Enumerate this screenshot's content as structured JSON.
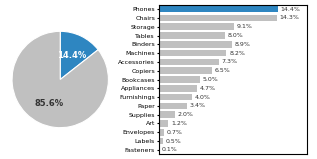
{
  "chart_data": [
    {
      "type": "pie",
      "values": [
        14.4,
        85.6
      ],
      "value_labels": [
        "14.4%",
        "85.6%"
      ],
      "colors": [
        "#2E86C1",
        "#C0C0C0"
      ],
      "data_labels": true
    },
    {
      "type": "bar",
      "orientation": "horizontal",
      "categories": [
        "Phones",
        "Chairs",
        "Storage",
        "Tables",
        "Binders",
        "Machines",
        "Accessories",
        "Copiers",
        "Bookcases",
        "Appliances",
        "Furnishings",
        "Paper",
        "Supplies",
        "Art",
        "Envelopes",
        "Labels",
        "Fasteners"
      ],
      "values": [
        14.4,
        14.3,
        9.1,
        8.0,
        8.9,
        8.2,
        7.3,
        6.5,
        5.0,
        4.7,
        4.0,
        3.4,
        2.0,
        1.2,
        0.7,
        0.5,
        0.1
      ],
      "value_labels": [
        "14.4%",
        "14.3%",
        "9.1%",
        "8.0%",
        "8.9%",
        "8.2%",
        "7.3%",
        "6.5%",
        "5.0%",
        "4.7%",
        "4.0%",
        "3.4%",
        "2.0%",
        "1.2%",
        "0.7%",
        "0.5%",
        "0.1%"
      ],
      "colors": [
        "#2E86C1",
        "#C0C0C0",
        "#C0C0C0",
        "#C0C0C0",
        "#C0C0C0",
        "#C0C0C0",
        "#C0C0C0",
        "#C0C0C0",
        "#C0C0C0",
        "#C0C0C0",
        "#C0C0C0",
        "#C0C0C0",
        "#C0C0C0",
        "#C0C0C0",
        "#C0C0C0",
        "#C0C0C0",
        "#C0C0C0"
      ],
      "xlim": [
        0,
        18
      ],
      "data_labels": true,
      "tick_labels": "y"
    }
  ]
}
